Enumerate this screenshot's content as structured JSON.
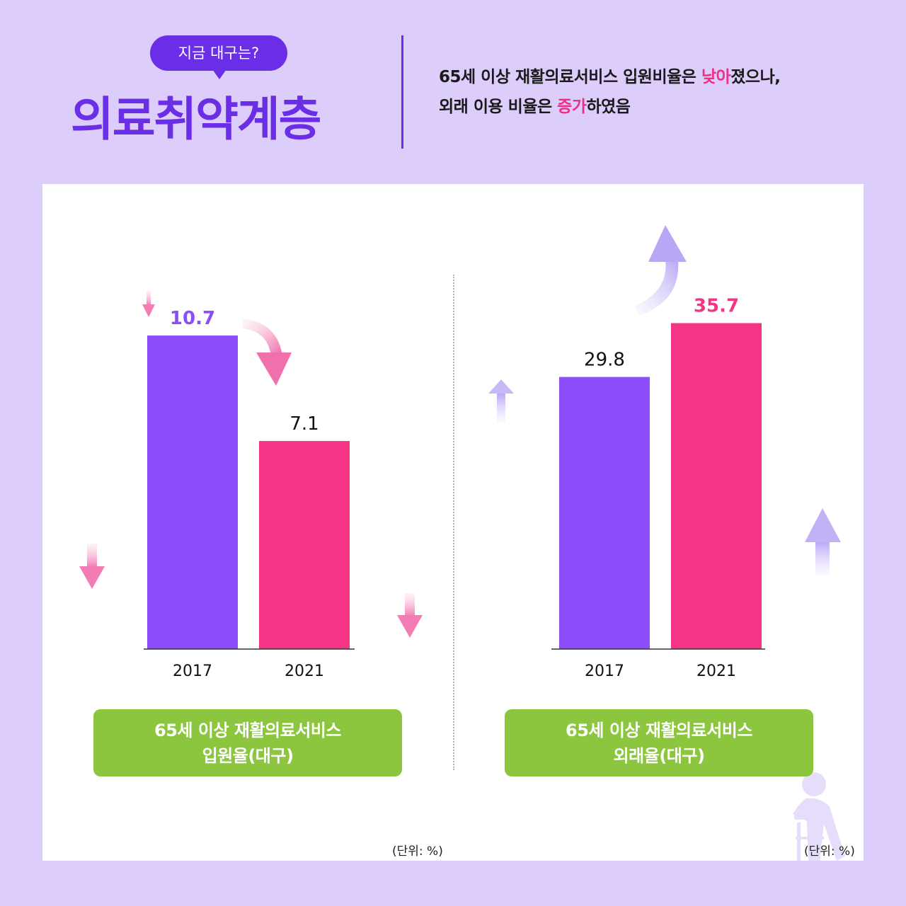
{
  "header": {
    "bubble": "지금 대구는?",
    "title": "의료취약계층",
    "summary": {
      "line1_a": "65세 이상 재활의료서비스 입원비율은 ",
      "line1_hl": "낮아",
      "line1_b": "졌으나,",
      "line2_a": "외래 이용 비율은 ",
      "line2_hl": "증가",
      "line2_b": "하였음"
    }
  },
  "colors": {
    "bar_2017": "#8e4dfb",
    "bar_2021": "#f43585",
    "label_2017_highlight": "#8e4dfb",
    "label_2021_highlight": "#f43585",
    "pill": "#8cc63f",
    "background": "#dccdfb",
    "accent": "#6a2ee6"
  },
  "chart_data": [
    {
      "type": "bar",
      "categories": [
        "2017",
        "2021"
      ],
      "values": [
        10.7,
        7.1
      ],
      "value_labels": [
        "10.7",
        "7.1"
      ],
      "title": "65세 이상 재활의료서비스 입원율(대구)",
      "title_lines": [
        "65세 이상 재활의료서비스",
        "입원율(대구)"
      ],
      "unit_label": "(단위: %)",
      "trend": "down"
    },
    {
      "type": "bar",
      "categories": [
        "2017",
        "2021"
      ],
      "values": [
        29.8,
        35.7
      ],
      "value_labels": [
        "29.8",
        "35.7"
      ],
      "title": "65세 이상 재활의료서비스 외래율(대구)",
      "title_lines": [
        "65세 이상 재활의료서비스",
        "외래율(대구)"
      ],
      "unit_label": "(단위: %)",
      "trend": "up"
    }
  ]
}
